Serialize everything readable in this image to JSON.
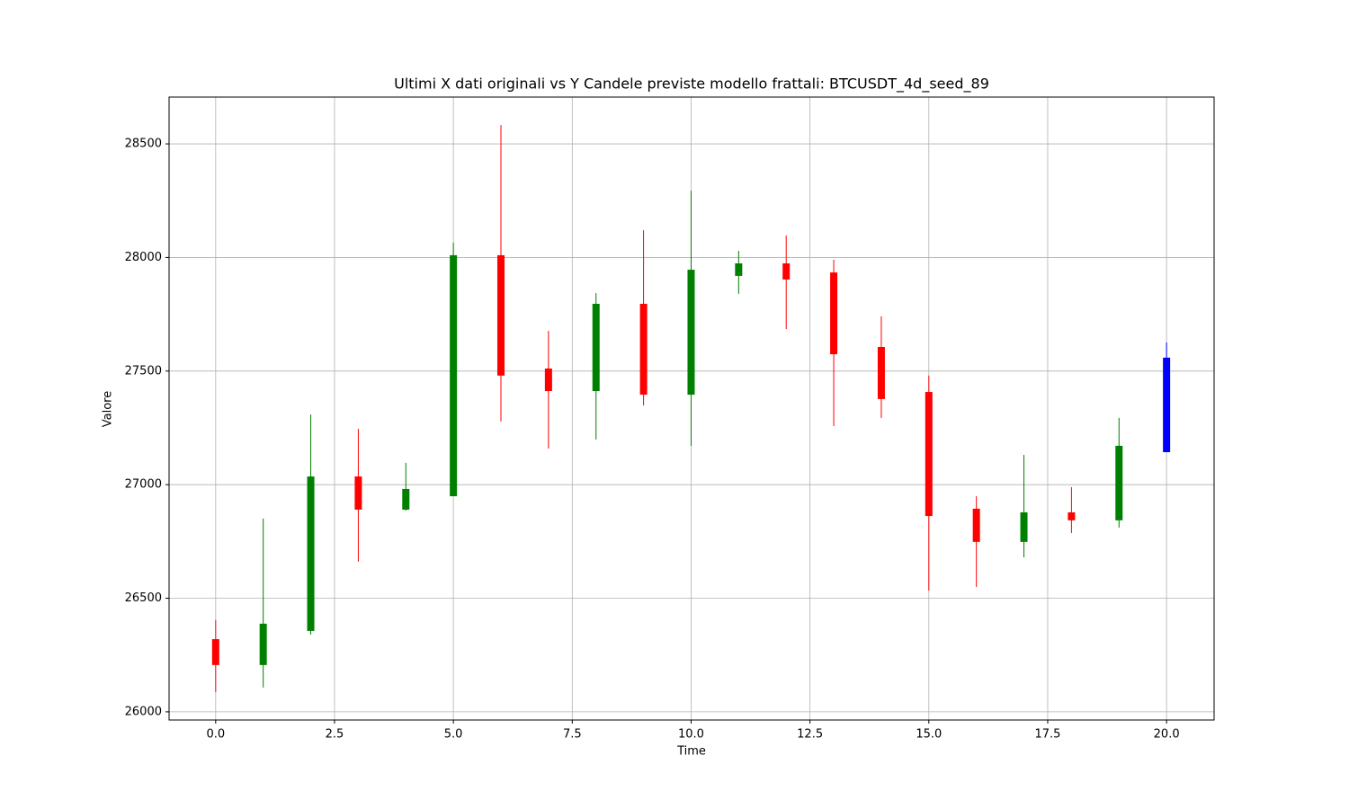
{
  "chart_data": {
    "type": "candlestick",
    "title": "Ultimi X dati originali vs Y Candele previste modello frattali: BTCUSDT_4d_seed_89",
    "x_label": "Time",
    "y_label": "Valore",
    "x": [
      0,
      1,
      2,
      3,
      4,
      5,
      6,
      7,
      8,
      9,
      10,
      11,
      12,
      13,
      14,
      15,
      16,
      17,
      18,
      19,
      20
    ],
    "open": [
      26320,
      26206,
      26356,
      27036,
      26890,
      26949,
      28010,
      27511,
      27412,
      27796,
      27396,
      27919,
      27974,
      27934,
      27606,
      27408,
      26894,
      26748,
      26878,
      26843,
      27143
    ],
    "high": [
      26404,
      26851,
      27309,
      27246,
      27096,
      28065,
      28583,
      27677,
      27843,
      28120,
      28294,
      28029,
      28097,
      27990,
      27741,
      27480,
      26949,
      27131,
      26989,
      27294,
      27626
    ],
    "low": [
      26087,
      26107,
      26340,
      26661,
      26886,
      26949,
      27278,
      27159,
      27199,
      27349,
      27171,
      27840,
      27685,
      27258,
      27294,
      26534,
      26550,
      26680,
      26787,
      26811,
      27143
    ],
    "close": [
      26206,
      26388,
      27036,
      26890,
      26981,
      28010,
      27480,
      27412,
      27796,
      27396,
      27946,
      27974,
      27903,
      27574,
      27377,
      26862,
      26748,
      26878,
      26843,
      27171,
      27559
    ],
    "colors": [
      "red",
      "green",
      "green",
      "red",
      "green",
      "green",
      "red",
      "red",
      "green",
      "red",
      "green",
      "green",
      "red",
      "red",
      "red",
      "red",
      "red",
      "green",
      "red",
      "green",
      "blue"
    ],
    "xlim": [
      -0.98,
      21.0
    ],
    "ylim": [
      25964,
      28706
    ],
    "xticks": [
      {
        "value": 0,
        "label": "0.0"
      },
      {
        "value": 2.5,
        "label": "2.5"
      },
      {
        "value": 5,
        "label": "5.0"
      },
      {
        "value": 7.5,
        "label": "7.5"
      },
      {
        "value": 10,
        "label": "10.0"
      },
      {
        "value": 12.5,
        "label": "12.5"
      },
      {
        "value": 15,
        "label": "15.0"
      },
      {
        "value": 17.5,
        "label": "17.5"
      },
      {
        "value": 20,
        "label": "20.0"
      }
    ],
    "yticks": [
      26000,
      26500,
      27000,
      27500,
      28000,
      28500
    ],
    "grid": true
  }
}
